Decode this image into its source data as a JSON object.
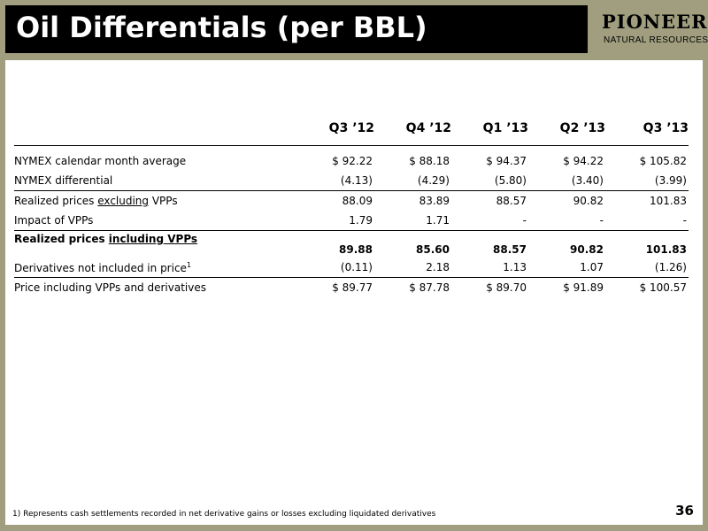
{
  "title": "Oil Differentials (per BBL)",
  "logo": {
    "main": "PIONEER",
    "sub": "NATURAL RESOURCES"
  },
  "table": {
    "columns": [
      "Q3 ’12",
      "Q4 ’12",
      "Q1 ’13",
      "Q2 ’13",
      "Q3 ’13"
    ],
    "rows": [
      {
        "label": "NYMEX calendar month average",
        "values": [
          "$ 92.22",
          "$ 88.18",
          "$ 94.37",
          "$ 94.22",
          "$ 105.82"
        ]
      },
      {
        "label": "NYMEX differential",
        "values": [
          "(4.13)",
          "(4.29)",
          "(5.80)",
          "(3.40)",
          "(3.99)"
        ]
      },
      {
        "label_pre": "Realized prices ",
        "label_u": "excluding",
        "label_post": " VPPs",
        "values": [
          "88.09",
          "83.89",
          "88.57",
          "90.82",
          "101.83"
        ]
      },
      {
        "label": "Impact of VPPs",
        "values": [
          "1.79",
          "1.71",
          "-",
          "-",
          "-"
        ]
      },
      {
        "label_pre": "Realized prices ",
        "label_u": "including",
        "label_post": " VPPs",
        "values": [
          "89.88",
          "85.60",
          "88.57",
          "90.82",
          "101.83"
        ]
      },
      {
        "label": "Derivatives not included in price",
        "sup": "1",
        "values": [
          "(0.11)",
          "2.18",
          "1.13",
          "1.07",
          "(1.26)"
        ]
      },
      {
        "label": "Price including VPPs and derivatives",
        "values": [
          "$ 89.77",
          "$ 87.78",
          "$ 89.70",
          "$ 91.89",
          "$ 100.57"
        ]
      }
    ]
  },
  "footnote": "1)   Represents cash settlements recorded in net derivative gains or losses excluding liquidated derivatives",
  "page_number": "36",
  "colors": {
    "frame": "#a09e7e",
    "title_bar": "#000000",
    "title_text": "#ffffff"
  }
}
